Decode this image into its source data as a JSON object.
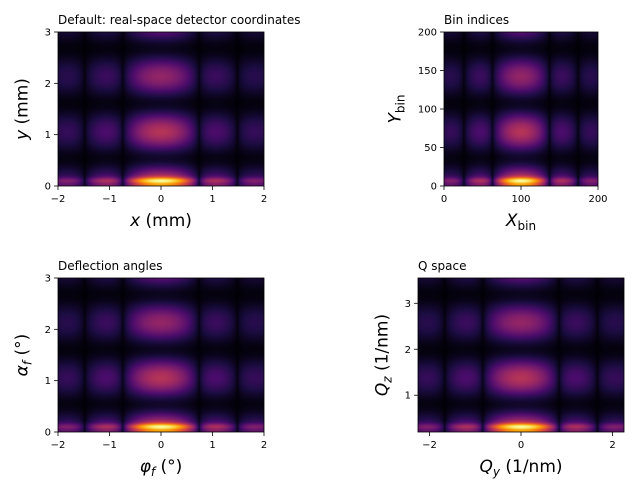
{
  "figure": {
    "colormap": "inferno",
    "colormap_stops": [
      "#000004",
      "#1b0c41",
      "#4a0c6b",
      "#781c6d",
      "#a52c60",
      "#cf4446",
      "#ed6925",
      "#fb9b06",
      "#f7d13d",
      "#fcffa4"
    ]
  },
  "chart_data": [
    {
      "id": "real-space",
      "type": "heatmap",
      "title": "Default: real-space detector coordinates",
      "xlabel": {
        "main": "x",
        "sub": "",
        "unit": " (mm)"
      },
      "ylabel": {
        "main": "y",
        "sub": "",
        "unit": " (mm)"
      },
      "xlim": [
        -2,
        2
      ],
      "ylim": [
        0,
        3
      ],
      "xticks": [
        -2,
        -1,
        0,
        1,
        2
      ],
      "yticks": [
        0,
        1,
        2,
        3
      ],
      "xtick_labels": [
        "−2",
        "−1",
        "0",
        "1",
        "2"
      ],
      "ytick_labels": [
        "0",
        "1",
        "2",
        "3"
      ],
      "grid": false
    },
    {
      "id": "bin-indices",
      "type": "heatmap",
      "title": "Bin indices",
      "xlabel": {
        "main": "X",
        "sub": "bin",
        "unit": ""
      },
      "ylabel": {
        "main": "Y",
        "sub": "bin",
        "unit": ""
      },
      "xlim": [
        0,
        200
      ],
      "ylim": [
        0,
        200
      ],
      "xticks": [
        0,
        100,
        200
      ],
      "yticks": [
        0,
        50,
        100,
        150,
        200
      ],
      "xtick_labels": [
        "0",
        "100",
        "200"
      ],
      "ytick_labels": [
        "0",
        "50",
        "100",
        "150",
        "200"
      ],
      "grid": false
    },
    {
      "id": "deflection-angles",
      "type": "heatmap",
      "title": "Deflection angles",
      "xlabel": {
        "main": "φ",
        "sub": "f",
        "unit": " (°)"
      },
      "ylabel": {
        "main": "α",
        "sub": "f",
        "unit": " (°)"
      },
      "xlim": [
        -2,
        2
      ],
      "ylim": [
        0,
        3
      ],
      "xticks": [
        -2,
        -1,
        0,
        1,
        2
      ],
      "yticks": [
        0,
        1,
        2,
        3
      ],
      "xtick_labels": [
        "−2",
        "−1",
        "0",
        "1",
        "2"
      ],
      "ytick_labels": [
        "0",
        "1",
        "2",
        "3"
      ],
      "grid": false
    },
    {
      "id": "q-space",
      "type": "heatmap",
      "title": "Q space",
      "xlabel": {
        "main": "Q",
        "sub": "y",
        "unit": " (1/nm)"
      },
      "ylabel": {
        "main": "Q",
        "sub": "z",
        "unit": " (1/nm)"
      },
      "xlim": [
        -2.25,
        2.25
      ],
      "ylim": [
        0.2,
        3.55
      ],
      "xticks": [
        -2,
        0,
        2
      ],
      "yticks": [
        1,
        2,
        3
      ],
      "xtick_labels": [
        "−2",
        "0",
        "2"
      ],
      "ytick_labels": [
        "1",
        "2",
        "3"
      ],
      "grid": false
    }
  ]
}
